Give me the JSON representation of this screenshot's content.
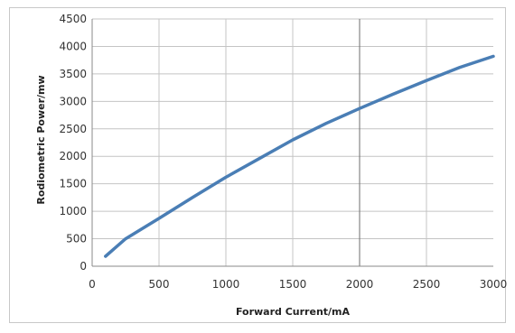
{
  "chart_data": {
    "type": "line",
    "title": "",
    "xlabel": "Forward Current/mA",
    "ylabel": "Rodiometric Power/mw",
    "xlim": [
      0,
      3000
    ],
    "ylim": [
      0,
      4500
    ],
    "x_ticks": [
      0,
      500,
      1000,
      1500,
      2000,
      2500,
      3000
    ],
    "y_ticks": [
      0,
      500,
      1000,
      1500,
      2000,
      2500,
      3000,
      3500,
      4000,
      4500
    ],
    "x_tick_labels": [
      "0",
      "500",
      "1000",
      "1500",
      "2000",
      "2500",
      "3000"
    ],
    "y_tick_labels": [
      "0",
      "500",
      "1000",
      "1500",
      "2000",
      "2500",
      "3000",
      "3500",
      "4000",
      "4500"
    ],
    "grid": true,
    "legend": "none",
    "series": [
      {
        "color": "#4a7eb5",
        "x": [
          100,
          250,
          500,
          750,
          1000,
          1250,
          1500,
          1750,
          2000,
          2250,
          2500,
          2750,
          3000
        ],
        "y": [
          180,
          500,
          870,
          1250,
          1620,
          1960,
          2300,
          2600,
          2870,
          3130,
          3380,
          3620,
          3820
        ]
      }
    ]
  }
}
